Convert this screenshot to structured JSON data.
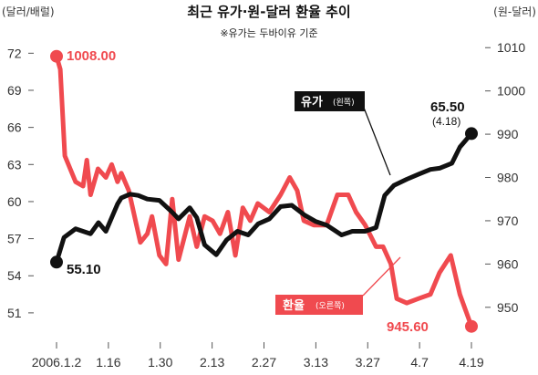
{
  "chart_data": {
    "type": "line",
    "title": "최근 유가·원-달러 환율 추이",
    "subtitle": "※유가는 두바이유 기준",
    "left_unit": "(달러/배럴)",
    "right_unit": "(원-달러)",
    "x_ticks": [
      "2006.1.2",
      "1.16",
      "1.30",
      "2.13",
      "2.27",
      "3.13",
      "3.27",
      "4.7",
      "4.19"
    ],
    "left_axis": {
      "ticks": [
        "51",
        "54",
        "57",
        "60",
        "63",
        "66",
        "69",
        "72"
      ],
      "ylim": [
        49,
        73.5
      ]
    },
    "right_axis": {
      "ticks": [
        "950",
        "960",
        "970",
        "980",
        "990",
        "1000",
        "1010"
      ],
      "ylim": [
        943,
        1013
      ]
    },
    "series": [
      {
        "name": "유가",
        "label_main": "유가",
        "label_sub": "(왼쪽)",
        "axis": "left",
        "color": "#111111",
        "start_label": "55.10",
        "end_label": "65.50",
        "end_note": "(4.18)",
        "x": [
          0,
          0.018,
          0.046,
          0.082,
          0.101,
          0.119,
          0.147,
          0.156,
          0.177,
          0.197,
          0.219,
          0.248,
          0.277,
          0.294,
          0.321,
          0.338,
          0.357,
          0.385,
          0.41,
          0.436,
          0.462,
          0.486,
          0.513,
          0.54,
          0.567,
          0.598,
          0.624,
          0.651,
          0.687,
          0.713,
          0.744,
          0.77,
          0.791,
          0.813,
          0.844,
          0.872,
          0.901,
          0.923,
          0.953,
          0.972,
          1
        ],
        "values": [
          55.1,
          57.1,
          57.8,
          57.4,
          58.3,
          57.6,
          59.8,
          60.3,
          60.6,
          60.5,
          60.2,
          60.1,
          59.2,
          58.6,
          59.5,
          58.7,
          56.5,
          55.7,
          56.9,
          57.6,
          57.3,
          58.2,
          58.6,
          59.6,
          59.7,
          58.9,
          58.4,
          58.1,
          57.3,
          57.6,
          57.6,
          57.9,
          60.5,
          61.3,
          61.8,
          62.2,
          62.6,
          62.7,
          63.1,
          64.4,
          65.5
        ]
      },
      {
        "name": "환율",
        "label_main": "환율",
        "label_sub": "(오른쪽)",
        "axis": "right",
        "color": "#f04a4f",
        "start_label": "1008.00",
        "end_label": "945.60",
        "x": [
          0,
          0.009,
          0.02,
          0.046,
          0.064,
          0.073,
          0.082,
          0.1,
          0.119,
          0.133,
          0.147,
          0.156,
          0.174,
          0.202,
          0.219,
          0.23,
          0.248,
          0.264,
          0.279,
          0.294,
          0.321,
          0.338,
          0.357,
          0.376,
          0.394,
          0.413,
          0.431,
          0.449,
          0.467,
          0.485,
          0.513,
          0.54,
          0.562,
          0.58,
          0.596,
          0.62,
          0.651,
          0.677,
          0.703,
          0.722,
          0.744,
          0.77,
          0.787,
          0.806,
          0.82,
          0.844,
          0.872,
          0.901,
          0.923,
          0.95,
          0.972,
          1
        ],
        "values": [
          1008,
          1005,
          985,
          979,
          978,
          984,
          976,
          982,
          980,
          983,
          979,
          981,
          977,
          965,
          967,
          971,
          962,
          960,
          975,
          961,
          971,
          964,
          971,
          970,
          967,
          972,
          962,
          973,
          970,
          974,
          972,
          976,
          980,
          977,
          970,
          969,
          969,
          976,
          976,
          972,
          969,
          964,
          964,
          960,
          952,
          951,
          952,
          953,
          958,
          962,
          953,
          945.6
        ]
      }
    ]
  }
}
